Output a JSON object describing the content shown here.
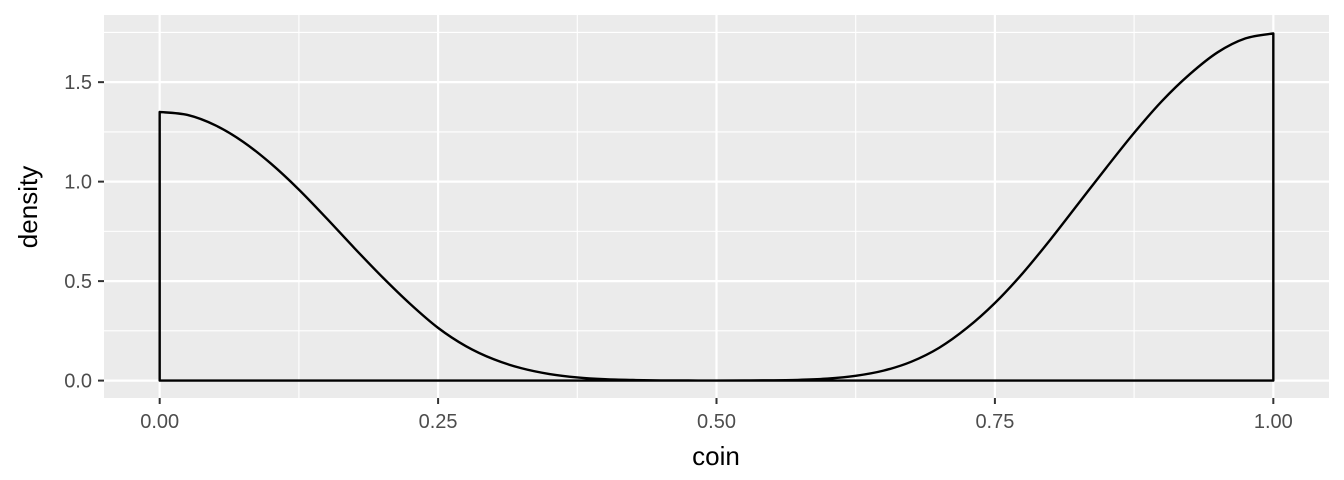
{
  "chart_data": {
    "type": "area",
    "xlabel": "coin",
    "ylabel": "density",
    "xlim": [
      -0.05,
      1.05
    ],
    "ylim": [
      -0.0875,
      1.8375
    ],
    "x_ticks": [
      0.0,
      0.25,
      0.5,
      0.75,
      1.0
    ],
    "x_tick_labels": [
      "0.00",
      "0.25",
      "0.50",
      "0.75",
      "1.00"
    ],
    "x_minor_ticks": [
      0.125,
      0.375,
      0.625,
      0.875
    ],
    "y_ticks": [
      0.0,
      0.5,
      1.0,
      1.5
    ],
    "y_tick_labels": [
      "0.0",
      "0.5",
      "1.0",
      "1.5"
    ],
    "y_minor_ticks": [
      0.25,
      0.75,
      1.25,
      1.75
    ],
    "grid": true,
    "panel_background": "#ebebeb",
    "grid_color": "#ffffff",
    "line_color": "#000000",
    "fill": "none",
    "series": [
      {
        "x": [
          0.0,
          0.025,
          0.05,
          0.075,
          0.1,
          0.125,
          0.15,
          0.175,
          0.2,
          0.225,
          0.25,
          0.275,
          0.3,
          0.325,
          0.35,
          0.375,
          0.4,
          0.425,
          0.45,
          0.475,
          0.5,
          0.525,
          0.55,
          0.575,
          0.6,
          0.625,
          0.65,
          0.675,
          0.7,
          0.725,
          0.75,
          0.775,
          0.8,
          0.825,
          0.85,
          0.875,
          0.9,
          0.925,
          0.95,
          0.975,
          1.0
        ],
        "y": [
          1.35,
          1.335,
          1.283,
          1.2,
          1.09,
          0.96,
          0.815,
          0.665,
          0.52,
          0.385,
          0.265,
          0.173,
          0.107,
          0.062,
          0.033,
          0.016,
          0.007,
          0.003,
          0.001,
          0.0005,
          0.0003,
          0.0006,
          0.0015,
          0.004,
          0.01,
          0.024,
          0.05,
          0.095,
          0.165,
          0.265,
          0.39,
          0.54,
          0.71,
          0.89,
          1.07,
          1.245,
          1.405,
          1.54,
          1.65,
          1.72,
          1.745
        ]
      }
    ]
  }
}
